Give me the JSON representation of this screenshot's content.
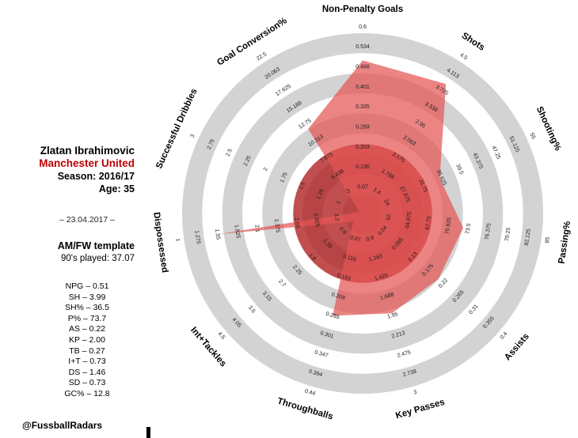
{
  "panel": {
    "player_name": "Zlatan Ibrahimovic",
    "team": "Manchester United",
    "team_color": "#c00000",
    "season_label": "Season: 2016/17",
    "age_label": "Age: 35",
    "date_label": "– 23.04.2017 –",
    "template_label": "AM/FW template",
    "nineties_label": "90's played: 37.07",
    "stat_lines": [
      "NPG – 0.51",
      "SH – 3.99",
      "SH% – 36.5",
      "P% – 73.7",
      "AS – 0.22",
      "KP – 2.00",
      "TB – 0.27",
      "I+T – 0.73",
      "DS – 1.46",
      "SD – 0.73",
      "GC% – 12.8"
    ],
    "credit": "@FussballRadars"
  },
  "chart_data": {
    "type": "radar",
    "title": "",
    "rings": 9,
    "legend": "none",
    "benchmark_circle": {
      "norm_radius": 0.385
    },
    "colors": {
      "ring_gray": "#d3d3d3",
      "ring_white": "#ffffff",
      "benchmark_fill": "#af1e1e",
      "benchmark_opacity": 0.78,
      "polygon_fill": "#e45555",
      "polygon_opacity": 0.72
    },
    "axes": [
      {
        "label": "Non-Penalty Goals",
        "value": 0.51,
        "ticks": [
          "0.07",
          "0.136",
          "0.203",
          "0.269",
          "0.335",
          "0.401",
          "0.468",
          "0.534",
          "0.6"
        ]
      },
      {
        "label": "Shots",
        "value": 3.99,
        "ticks": [
          "1.4",
          "1.788",
          "2.175",
          "2.563",
          "2.95",
          "3.338",
          "3.725",
          "4.113",
          "4.5"
        ]
      },
      {
        "label": "Shooting%",
        "value": 36.5,
        "ticks": [
          "24",
          "27.875",
          "31.75",
          "35.625",
          "39.5",
          "43.375",
          "47.25",
          "51.125",
          "55"
        ]
      },
      {
        "label": "Passing%",
        "value": 73.7,
        "ticks": [
          "62",
          "64.875",
          "67.75",
          "70.625",
          "73.5",
          "76.375",
          "79.25",
          "82.125",
          "85"
        ]
      },
      {
        "label": "Assists",
        "value": 0.22,
        "ticks": [
          "0.04",
          "0.085",
          "0.13",
          "0.175",
          "0.22",
          "0.265",
          "0.31",
          "0.355",
          "0.4"
        ]
      },
      {
        "label": "Key Passes",
        "value": 2.0,
        "ticks": [
          "0.9",
          "1.163",
          "1.425",
          "1.688",
          "1.95",
          "2.213",
          "2.475",
          "2.738",
          "3"
        ]
      },
      {
        "label": "Throughballs",
        "value": 0.27,
        "ticks": [
          "0.07",
          "0.116",
          "0.163",
          "0.209",
          "0.255",
          "0.301",
          "0.347",
          "0.394",
          "0.44"
        ]
      },
      {
        "label": "Int+Tackles",
        "value": 0.73,
        "ticks": [
          "0.9",
          "1.35",
          "1.8",
          "2.25",
          "2.7",
          "3.15",
          "3.6",
          "4.05",
          "4.5"
        ]
      },
      {
        "label": "Dispossessed",
        "value": 1.46,
        "ticks": [
          "3.2",
          "2.925",
          "2.65",
          "2.375",
          "2.1",
          "1.825",
          "1.55",
          "1.275",
          "1"
        ]
      },
      {
        "label": "Successful Dribbles",
        "value": 0.73,
        "ticks": [
          "1",
          "1.25",
          "1.5",
          "1.75",
          "2",
          "2.25",
          "2.5",
          "2.75",
          "3"
        ]
      },
      {
        "label": "Goal Conversion%",
        "value": 12.8,
        "ticks": [
          "3",
          "5.438",
          "7.875",
          "10.313",
          "12.75",
          "15.188",
          "17.625",
          "20.063",
          "22.5"
        ]
      }
    ]
  }
}
